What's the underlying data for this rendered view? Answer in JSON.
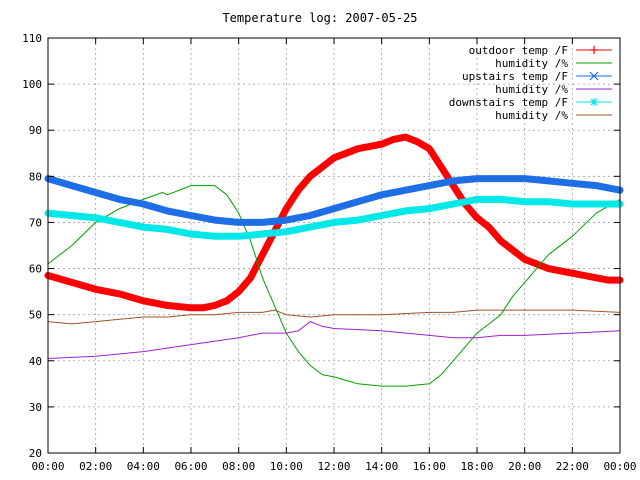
{
  "chart_data": {
    "type": "line",
    "title": "Temperature log: 2007-05-25",
    "xlabel": "",
    "ylabel": "",
    "xlim": [
      0,
      24
    ],
    "ylim": [
      20,
      110
    ],
    "x_ticks": [
      "00:00",
      "02:00",
      "04:00",
      "06:00",
      "08:00",
      "10:00",
      "12:00",
      "14:00",
      "16:00",
      "18:00",
      "20:00",
      "22:00",
      "00:00"
    ],
    "y_ticks": [
      20,
      30,
      40,
      50,
      60,
      70,
      80,
      90,
      100,
      110
    ],
    "grid": true,
    "legend_position": "top-right",
    "series": [
      {
        "name": "outdoor temp /F",
        "color": "#ff0000",
        "marker": "plus",
        "line_weight": "thick",
        "x": [
          0,
          1,
          2,
          3,
          4,
          5,
          6,
          6.5,
          7,
          7.5,
          8,
          8.5,
          9,
          9.5,
          10,
          10.5,
          11,
          11.5,
          12,
          12.5,
          13,
          13.5,
          14,
          14.5,
          15,
          15.5,
          16,
          16.5,
          17,
          17.5,
          18,
          18.5,
          19,
          19.5,
          20,
          20.5,
          21,
          21.5,
          22,
          22.5,
          23,
          23.5,
          24
        ],
        "values": [
          58.5,
          57,
          55.5,
          54.5,
          53,
          52,
          51.5,
          51.5,
          52,
          53,
          55,
          58,
          63,
          68,
          73,
          77,
          80,
          82,
          84,
          85,
          86,
          86.5,
          87,
          88,
          88.5,
          87.5,
          86,
          82,
          78,
          74,
          71,
          69,
          66,
          64,
          62,
          61,
          60,
          59.5,
          59,
          58.5,
          58,
          57.5,
          57.5
        ]
      },
      {
        "name": "humidity /%",
        "color": "#00a000",
        "marker": "none",
        "line_weight": "thin",
        "x": [
          0,
          1,
          2,
          3,
          4,
          4.8,
          5,
          6,
          7,
          7.5,
          8,
          8.5,
          9,
          9.5,
          10,
          10.5,
          11,
          11.5,
          12,
          13,
          14,
          15,
          16,
          16.5,
          17,
          17.5,
          18,
          18.5,
          19,
          19.5,
          20,
          20.5,
          21,
          22,
          23,
          24
        ],
        "values": [
          61,
          65,
          70,
          73,
          75,
          76.5,
          76,
          78,
          78,
          76,
          72,
          66,
          58,
          52,
          46,
          42,
          39,
          37,
          36.5,
          35,
          34.5,
          34.5,
          35,
          37,
          40,
          43,
          46,
          48,
          50,
          54,
          57,
          60,
          63,
          67,
          72,
          75
        ]
      },
      {
        "name": "upstairs temp /F",
        "color": "#1e6ee6",
        "marker": "x",
        "line_weight": "thick",
        "x": [
          0,
          1,
          2,
          3,
          4,
          5,
          6,
          7,
          8,
          9,
          10,
          11,
          12,
          13,
          14,
          15,
          16,
          17,
          18,
          19,
          20,
          21,
          22,
          23,
          24
        ],
        "values": [
          79.5,
          78,
          76.5,
          75,
          74,
          72.5,
          71.5,
          70.5,
          70,
          70,
          70.5,
          71.5,
          73,
          74.5,
          76,
          77,
          78,
          79,
          79.5,
          79.5,
          79.5,
          79,
          78.5,
          78,
          77
        ]
      },
      {
        "name": "humidity /%",
        "color": "#a020d0",
        "marker": "none",
        "line_weight": "thin",
        "x": [
          0,
          2,
          4,
          6,
          8,
          9,
          10,
          10.5,
          11,
          11.5,
          12,
          14,
          16,
          17,
          18,
          19,
          20,
          22,
          24
        ],
        "values": [
          40.5,
          41,
          42,
          43.5,
          45,
          46,
          46,
          46.5,
          48.5,
          47.5,
          47,
          46.5,
          45.5,
          45,
          45,
          45.5,
          45.5,
          46,
          46.5
        ]
      },
      {
        "name": "downstairs temp /F",
        "color": "#00e8e8",
        "marker": "star",
        "line_weight": "thick",
        "x": [
          0,
          1,
          2,
          3,
          4,
          5,
          6,
          7,
          8,
          9,
          10,
          11,
          12,
          13,
          14,
          15,
          16,
          17,
          18,
          19,
          20,
          21,
          22,
          23,
          24
        ],
        "values": [
          72,
          71.5,
          71,
          70,
          69,
          68.5,
          67.5,
          67,
          67,
          67.5,
          68,
          69,
          70,
          70.5,
          71.5,
          72.5,
          73,
          74,
          75,
          75,
          74.5,
          74.5,
          74,
          74,
          74
        ]
      },
      {
        "name": "humidity /%",
        "color": "#a0522d",
        "marker": "none",
        "line_weight": "thin",
        "x": [
          0,
          1,
          2,
          3,
          4,
          5,
          6,
          7,
          8,
          9,
          9.5,
          10,
          11,
          12,
          14,
          16,
          17,
          18,
          19,
          20,
          22,
          24
        ],
        "values": [
          48.5,
          48,
          48.5,
          49,
          49.5,
          49.5,
          50,
          50,
          50.5,
          50.5,
          51,
          50,
          49.5,
          50,
          50,
          50.5,
          50.5,
          51,
          51,
          51,
          51,
          50.5
        ]
      }
    ]
  }
}
